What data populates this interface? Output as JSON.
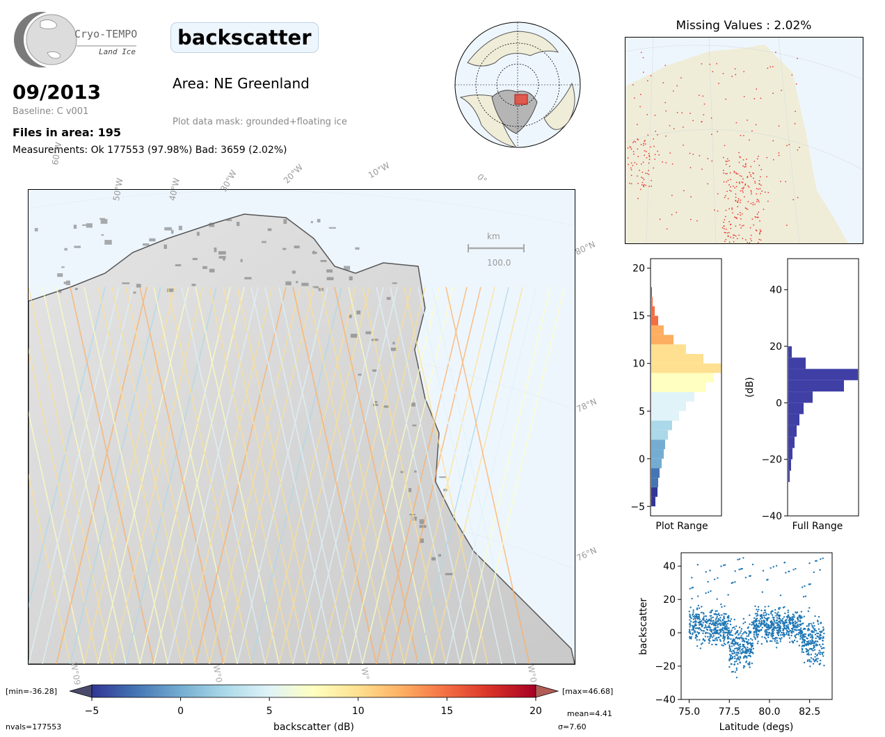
{
  "header": {
    "logo_title": "Cryo-TEMPO",
    "logo_subtitle": "Land Ice",
    "variable": "backscatter",
    "date": "09/2013",
    "baseline": "Baseline: C v001",
    "area": "Area: NE Greenland",
    "mask": "Plot data mask: grounded+floating ice",
    "files": "Files in area: 195",
    "measurements": "Measurements: Ok 177553 (97.98%) Bad: 3659 (2.02%)"
  },
  "map": {
    "lon_labels": [
      "60°W",
      "50°W",
      "40°W",
      "30°W",
      "20°W",
      "10°W",
      "0°"
    ],
    "lat_labels": [
      "80°N",
      "78°N",
      "76°N"
    ],
    "bottom_labels": [
      "W°09",
      "W°0",
      "W°",
      "W°0"
    ],
    "scale_unit": "km",
    "scale_value": "100.0"
  },
  "missing": {
    "title": "Missing Values : 2.02%"
  },
  "colorbar": {
    "min_label": "[min=-36.28]",
    "max_label": "[max=46.68]",
    "label": "backscatter (dB)",
    "ticks": [
      "−5",
      "0",
      "5",
      "10",
      "15",
      "20"
    ],
    "nvals": "nvals=177553",
    "mean": "mean=4.41",
    "sigma": "σ=7.60",
    "colors": [
      "#313695",
      "#4575b4",
      "#74add1",
      "#abd9e9",
      "#e0f3f8",
      "#ffffbf",
      "#fee090",
      "#fdae61",
      "#f46d43",
      "#d73027",
      "#a50026"
    ]
  },
  "chart_data": [
    {
      "type": "bar",
      "orientation": "horizontal",
      "xlabel": "Plot Range",
      "ylim": [
        -6,
        21
      ],
      "yticks": [
        "−5",
        "0",
        "5",
        "10",
        "15",
        "20"
      ],
      "bins": [
        -5,
        -4,
        -3,
        -2,
        -1,
        0,
        1,
        2,
        3,
        4,
        5,
        6,
        7,
        8,
        9,
        10,
        11,
        12,
        13,
        14,
        15,
        16,
        17
      ],
      "values": [
        0.06,
        0.09,
        0.1,
        0.12,
        0.15,
        0.18,
        0.2,
        0.24,
        0.3,
        0.4,
        0.5,
        0.62,
        0.78,
        0.9,
        1.0,
        0.75,
        0.5,
        0.32,
        0.18,
        0.1,
        0.05,
        0.02,
        0.01
      ]
    },
    {
      "type": "bar",
      "orientation": "horizontal",
      "xlabel": "Full Range",
      "ylabel": "(dB)",
      "ylim": [
        -40,
        51
      ],
      "yticks": [
        "40",
        "20",
        "0",
        "−20",
        "−40"
      ],
      "bins": [
        -28,
        -24,
        -20,
        -16,
        -12,
        -8,
        -4,
        0,
        4,
        8,
        12,
        16
      ],
      "values": [
        0.02,
        0.04,
        0.06,
        0.09,
        0.12,
        0.16,
        0.22,
        0.35,
        0.8,
        1.0,
        0.25,
        0.05
      ]
    },
    {
      "type": "scatter",
      "xlabel": "Latitude (degs)",
      "ylabel": "backscatter",
      "xlim": [
        74.5,
        83.9
      ],
      "ylim": [
        -40,
        48
      ],
      "xticks": [
        "75.0",
        "77.5",
        "80.0",
        "82.5"
      ],
      "yticks": [
        "40",
        "20",
        "0",
        "−20",
        "−40"
      ],
      "color": "#1f77b4"
    }
  ]
}
